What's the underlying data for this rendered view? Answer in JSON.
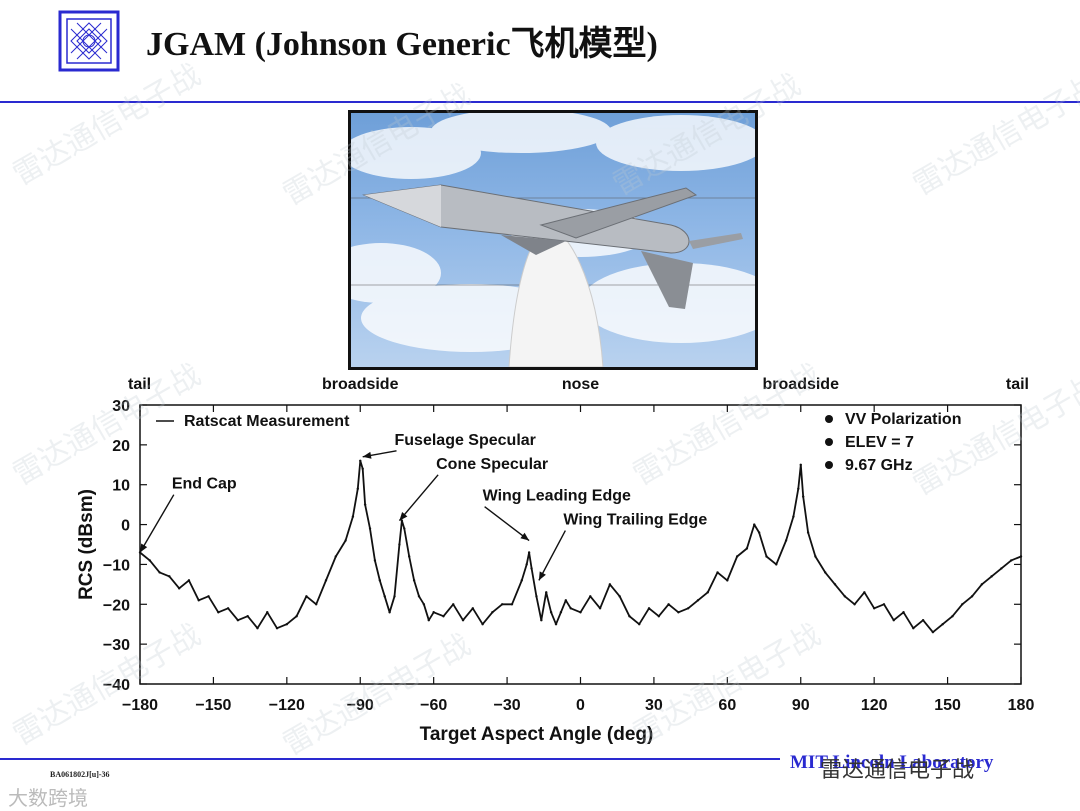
{
  "header": {
    "title": "JGAM (Johnson Generic飞机模型)"
  },
  "footer": {
    "doc_id": "BA061802J[u]-36",
    "org_text": "MIT Lincoln Laboratory",
    "watermark_text": "雷达通信电子战",
    "corner_text": "大数跨境"
  },
  "colors": {
    "accent": "#2a2ad0",
    "trace": "#111111"
  },
  "chart_data": {
    "type": "line",
    "xlabel": "Target Aspect Angle (deg)",
    "ylabel": "RCS (dBsm)",
    "xlim": [
      -180,
      180
    ],
    "ylim": [
      -40,
      30
    ],
    "xticks": [
      -180,
      -150,
      -120,
      -90,
      -60,
      -30,
      0,
      30,
      60,
      90,
      120,
      150,
      180
    ],
    "yticks": [
      -40,
      -30,
      -20,
      -10,
      0,
      10,
      20,
      30
    ],
    "grid": false,
    "aspect_labels": [
      {
        "text": "tail",
        "x": -180
      },
      {
        "text": "broadside",
        "x": -90
      },
      {
        "text": "nose",
        "x": 0
      },
      {
        "text": "broadside",
        "x": 90
      },
      {
        "text": "tail",
        "x": 180
      }
    ],
    "legend": {
      "position": "top-left",
      "entries": [
        "Ratscat Measurement"
      ]
    },
    "conditions": [
      "VV Polarization",
      "ELEV = 7",
      "9.67 GHz"
    ],
    "annotations": [
      {
        "text": "End Cap",
        "x": -180,
        "y": -7,
        "text_x": -167,
        "text_y": 9
      },
      {
        "text": "Fuselage Specular",
        "x": -89,
        "y": 17,
        "text_x": -76,
        "text_y": 20
      },
      {
        "text": "Cone Specular",
        "x": -74,
        "y": 1,
        "text_x": -59,
        "text_y": 14
      },
      {
        "text": "Wing Leading Edge",
        "x": -21,
        "y": -4,
        "text_x": -40,
        "text_y": 6
      },
      {
        "text": "Wing Trailing Edge",
        "x": -17,
        "y": -14,
        "text_x": -7,
        "text_y": 0
      }
    ],
    "series": [
      {
        "name": "Ratscat Measurement",
        "x": [
          -180,
          -176,
          -172,
          -168,
          -164,
          -160,
          -156,
          -152,
          -148,
          -144,
          -140,
          -136,
          -132,
          -128,
          -124,
          -120,
          -116,
          -112,
          -108,
          -104,
          -100,
          -96,
          -93,
          -91,
          -90,
          -89,
          -88,
          -86,
          -84,
          -82,
          -80,
          -78,
          -76,
          -74,
          -73,
          -72,
          -70,
          -68,
          -66,
          -64,
          -62,
          -60,
          -56,
          -52,
          -48,
          -44,
          -40,
          -36,
          -32,
          -28,
          -24,
          -22,
          -21,
          -20,
          -18,
          -16,
          -14,
          -12,
          -10,
          -8,
          -6,
          -4,
          0,
          4,
          8,
          12,
          16,
          20,
          24,
          28,
          32,
          36,
          40,
          44,
          48,
          52,
          56,
          60,
          64,
          68,
          71,
          73,
          76,
          80,
          84,
          87,
          89,
          90,
          91,
          93,
          96,
          100,
          104,
          108,
          112,
          116,
          120,
          124,
          128,
          132,
          136,
          140,
          144,
          148,
          152,
          156,
          160,
          164,
          168,
          172,
          176,
          180
        ],
        "y": [
          -7,
          -9,
          -12,
          -13,
          -16,
          -14,
          -19,
          -18,
          -22,
          -21,
          -24,
          -23,
          -26,
          -22,
          -26,
          -25,
          -23,
          -18,
          -20,
          -14,
          -8,
          -4,
          2,
          9,
          16,
          14,
          5,
          -1,
          -9,
          -14,
          -18,
          -22,
          -18,
          -5,
          1,
          -1,
          -8,
          -14,
          -18,
          -20,
          -24,
          -22,
          -23,
          -20,
          -24,
          -21,
          -25,
          -22,
          -20,
          -20,
          -14,
          -10,
          -7,
          -11,
          -18,
          -24,
          -17,
          -22,
          -25,
          -22,
          -19,
          -21,
          -22,
          -18,
          -21,
          -15,
          -18,
          -23,
          -25,
          -21,
          -23,
          -20,
          -22,
          -21,
          -19,
          -17,
          -12,
          -14,
          -8,
          -6,
          0,
          -2,
          -8,
          -10,
          -4,
          2,
          9,
          15,
          7,
          -2,
          -8,
          -12,
          -15,
          -18,
          -20,
          -17,
          -21,
          -20,
          -24,
          -22,
          -26,
          -24,
          -27,
          -25,
          -23,
          -20,
          -18,
          -15,
          -13,
          -11,
          -9,
          -8
        ]
      }
    ]
  }
}
